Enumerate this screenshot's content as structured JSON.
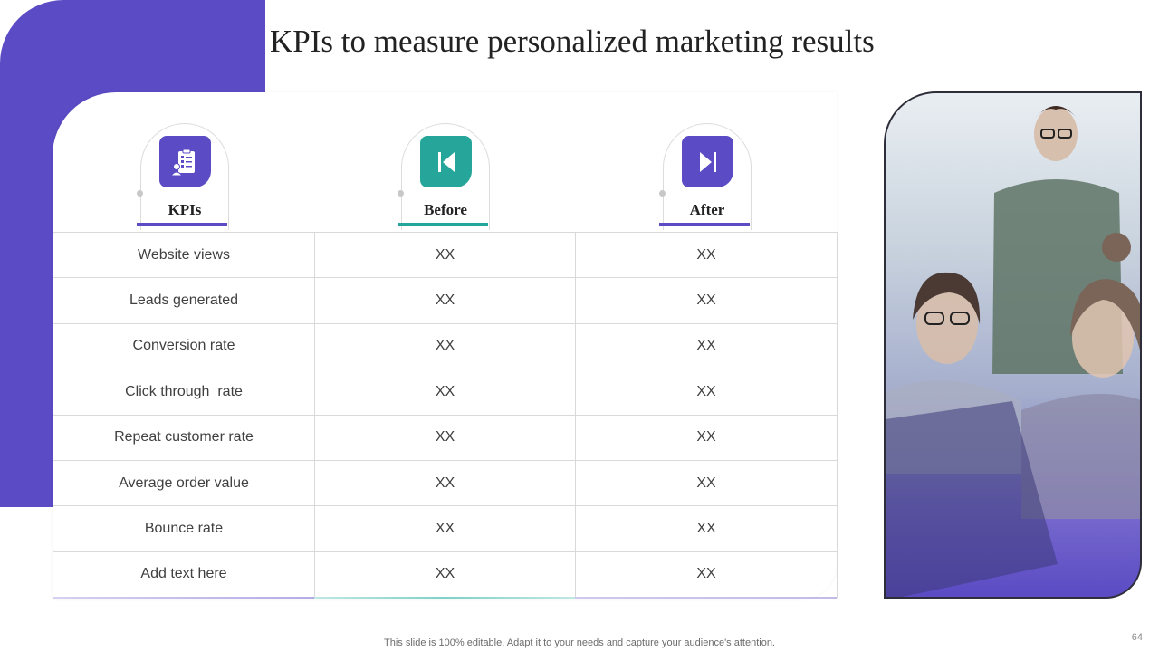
{
  "slide": {
    "title": "KPIs to measure personalized marketing results",
    "footer_note": "This slide is 100% editable. Adapt it to your needs and capture your audience's attention.",
    "page_number": "64"
  },
  "columns": [
    {
      "label": "KPIs",
      "icon": "clipboard-person-icon",
      "color": "#5b4bc4"
    },
    {
      "label": "Before",
      "icon": "skip-back-icon",
      "color": "#26a69a"
    },
    {
      "label": "After",
      "icon": "skip-forward-icon",
      "color": "#5b4bc4"
    }
  ],
  "rows": [
    {
      "kpi": "Website views",
      "before": "XX",
      "after": "XX"
    },
    {
      "kpi": "Leads generated",
      "before": "XX",
      "after": "XX"
    },
    {
      "kpi": "Conversion rate",
      "before": "XX",
      "after": "XX"
    },
    {
      "kpi": "Click through  rate",
      "before": "XX",
      "after": "XX"
    },
    {
      "kpi": "Repeat customer rate",
      "before": "XX",
      "after": "XX"
    },
    {
      "kpi": "Average order value",
      "before": "XX",
      "after": "XX"
    },
    {
      "kpi": "Bounce rate",
      "before": "XX",
      "after": "XX"
    },
    {
      "kpi": "Add text here",
      "before": "XX",
      "after": "XX"
    }
  ],
  "colors": {
    "accent_purple": "#5b4bc4",
    "accent_teal": "#26a69a"
  }
}
